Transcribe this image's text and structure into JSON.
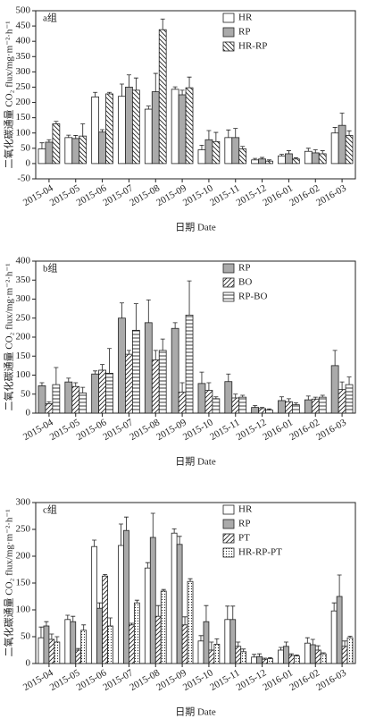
{
  "chart_data": [
    {
      "type": "bar",
      "title": "a组",
      "y_label": "二氧化碳通量 CO₂ flux/mg·m⁻²·h⁻¹",
      "x_label": "日期 Date",
      "categories": [
        "2015-04",
        "2015-05",
        "2015-06",
        "2015-07",
        "2015-08",
        "2015-09",
        "2015-10",
        "2015-11",
        "2015-12",
        "2016-01",
        "2016-02",
        "2016-03"
      ],
      "ylim": [
        -50,
        500
      ],
      "yticks": [
        -50,
        0,
        50,
        100,
        150,
        200,
        250,
        300,
        350,
        400,
        450,
        500
      ],
      "legend": "top-right",
      "series": [
        {
          "name": "HR",
          "color": "#ffffff",
          "pattern": "solid",
          "values": [
            48,
            85,
            218,
            220,
            178,
            243,
            45,
            85,
            12,
            25,
            40,
            100
          ],
          "errors": [
            20,
            8,
            15,
            40,
            10,
            8,
            15,
            25,
            5,
            5,
            10,
            18
          ]
        },
        {
          "name": "RP",
          "color": "#aaaaaa",
          "pattern": "solid",
          "values": [
            70,
            82,
            103,
            250,
            235,
            225,
            78,
            85,
            15,
            32,
            35,
            125
          ],
          "errors": [
            8,
            10,
            8,
            40,
            60,
            15,
            30,
            30,
            5,
            10,
            10,
            40
          ]
        },
        {
          "name": "HR-RP",
          "color": "#ffffff",
          "pattern": "backslash",
          "values": [
            130,
            90,
            228,
            240,
            438,
            248,
            72,
            48,
            8,
            15,
            32,
            92
          ],
          "errors": [
            8,
            40,
            5,
            40,
            35,
            35,
            30,
            8,
            4,
            4,
            10,
            15
          ]
        }
      ]
    },
    {
      "type": "bar",
      "title": "b组",
      "y_label": "二氧化碳通量 CO₂ flux/mg·m⁻²·h⁻¹",
      "x_label": "日期 Date",
      "categories": [
        "2015-04",
        "2015-05",
        "2015-06",
        "2015-07",
        "2015-08",
        "2015-09",
        "2015-10",
        "2015-11",
        "2015-12",
        "2016-01",
        "2016-02",
        "2016-03"
      ],
      "ylim": [
        0,
        400
      ],
      "yticks": [
        0,
        50,
        100,
        150,
        200,
        250,
        300,
        350,
        400
      ],
      "legend": "top-right",
      "series": [
        {
          "name": "RP",
          "color": "#aaaaaa",
          "pattern": "solid",
          "values": [
            72,
            82,
            103,
            250,
            238,
            223,
            78,
            83,
            15,
            33,
            35,
            125
          ],
          "errors": [
            8,
            10,
            8,
            40,
            60,
            15,
            30,
            20,
            5,
            10,
            10,
            40
          ]
        },
        {
          "name": "BO",
          "color": "#ffffff",
          "pattern": "slash",
          "values": [
            25,
            70,
            113,
            155,
            140,
            55,
            60,
            40,
            12,
            30,
            37,
            62
          ],
          "errors": [
            5,
            10,
            15,
            10,
            25,
            25,
            20,
            10,
            3,
            8,
            5,
            20
          ]
        },
        {
          "name": "RP-BO",
          "color": "#ffffff",
          "pattern": "hlines",
          "values": [
            75,
            53,
            105,
            218,
            165,
            258,
            38,
            42,
            8,
            22,
            42,
            75
          ],
          "errors": [
            45,
            15,
            65,
            70,
            30,
            90,
            5,
            5,
            3,
            5,
            5,
            20
          ]
        }
      ]
    },
    {
      "type": "bar",
      "title": "c组",
      "y_label": "二氧化碳通量 CO₂ flux/mg·m⁻²·h⁻¹",
      "x_label": "日期 Date",
      "categories": [
        "2015-04",
        "2015-05",
        "2015-06",
        "2015-07",
        "2015-08",
        "2015-09",
        "2015-10",
        "2015-11",
        "2015-12",
        "2016-01",
        "2016-02",
        "2016-03"
      ],
      "ylim": [
        0,
        300
      ],
      "yticks": [
        0,
        50,
        100,
        150,
        200,
        250,
        300
      ],
      "legend": "top-right",
      "series": [
        {
          "name": "HR",
          "color": "#ffffff",
          "pattern": "solid",
          "values": [
            48,
            82,
            218,
            220,
            178,
            243,
            42,
            82,
            12,
            25,
            38,
            98
          ],
          "errors": [
            20,
            8,
            12,
            40,
            10,
            8,
            10,
            25,
            5,
            5,
            10,
            15
          ]
        },
        {
          "name": "RP",
          "color": "#aaaaaa",
          "pattern": "solid",
          "values": [
            70,
            78,
            103,
            248,
            235,
            222,
            78,
            82,
            13,
            32,
            35,
            125
          ],
          "errors": [
            8,
            10,
            10,
            25,
            45,
            15,
            30,
            25,
            5,
            8,
            10,
            40
          ]
        },
        {
          "name": "PT",
          "color": "#ffffff",
          "pattern": "slash",
          "values": [
            45,
            25,
            163,
            72,
            88,
            72,
            25,
            32,
            8,
            15,
            25,
            32
          ],
          "errors": [
            10,
            3,
            3,
            3,
            20,
            15,
            15,
            8,
            2,
            3,
            8,
            10
          ]
        },
        {
          "name": "HR-RP-PT",
          "color": "#ffffff",
          "pattern": "dots",
          "values": [
            40,
            62,
            70,
            113,
            135,
            153,
            36,
            22,
            9,
            14,
            18,
            48
          ],
          "errors": [
            10,
            10,
            15,
            5,
            3,
            5,
            10,
            5,
            2,
            2,
            2,
            3
          ]
        }
      ]
    }
  ]
}
